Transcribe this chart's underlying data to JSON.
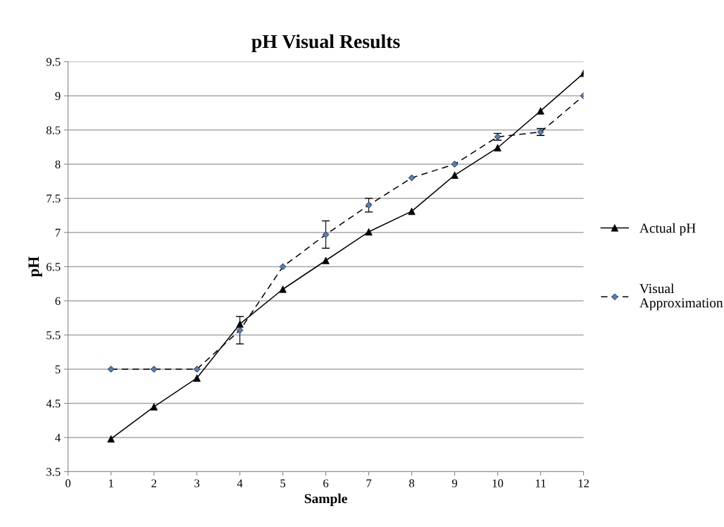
{
  "chart_data": {
    "type": "line",
    "title": "pH Visual Results",
    "xlabel": "Sample",
    "ylabel": "pH",
    "x": [
      1,
      2,
      3,
      4,
      5,
      6,
      7,
      8,
      9,
      10,
      11,
      12
    ],
    "series": [
      {
        "name": "Actual pH",
        "color": "#000000",
        "marker": "triangle",
        "line_style": "solid",
        "values": [
          3.98,
          4.45,
          4.87,
          5.66,
          6.17,
          6.59,
          7.01,
          7.31,
          7.84,
          8.24,
          8.78,
          9.33
        ]
      },
      {
        "name": "Visual Approximation",
        "color": "#4f81bd",
        "marker": "diamond",
        "line_style": "dashed",
        "values": [
          5,
          5,
          5,
          5.57,
          6.5,
          6.97,
          7.4,
          7.8,
          8.0,
          8.4,
          8.47,
          9.0
        ],
        "errors": [
          null,
          null,
          null,
          0.2,
          null,
          0.2,
          0.1,
          null,
          null,
          0.05,
          0.05,
          null
        ]
      }
    ],
    "xlim": [
      0,
      12
    ],
    "xticks": [
      0,
      1,
      2,
      3,
      4,
      5,
      6,
      7,
      8,
      9,
      10,
      11,
      12
    ],
    "ylim": [
      3.5,
      9.5
    ],
    "yticks": [
      3.5,
      4,
      4.5,
      5,
      5.5,
      6,
      6.5,
      7,
      7.5,
      8,
      8.5,
      9,
      9.5
    ],
    "grid": "y",
    "legend": "right"
  }
}
